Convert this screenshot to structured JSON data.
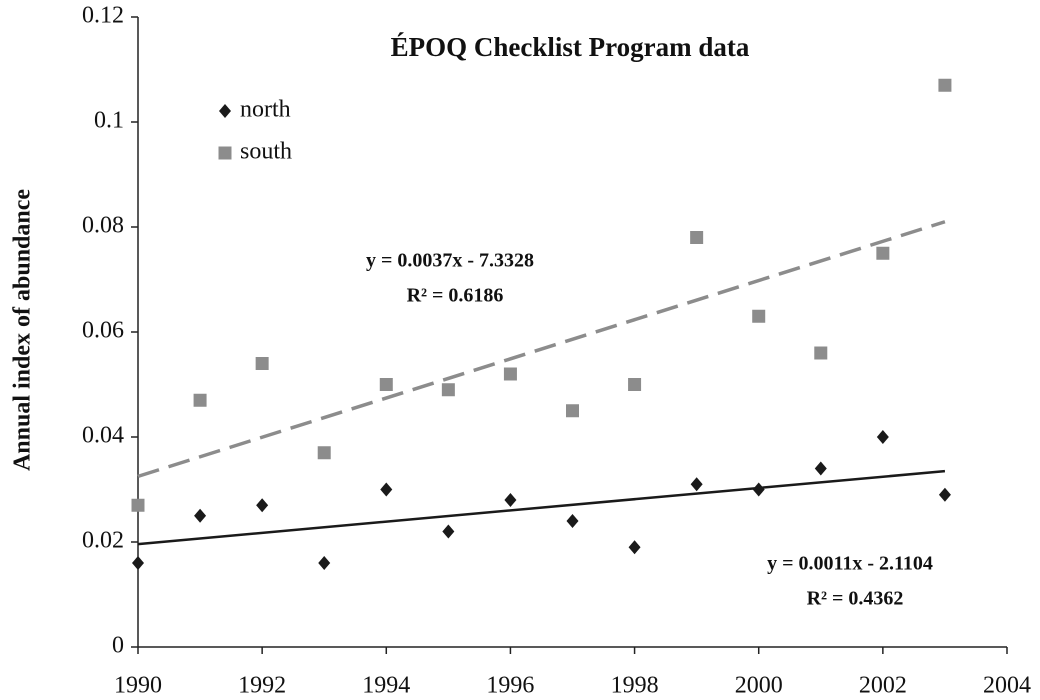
{
  "chart_data": {
    "type": "scatter",
    "title": "ÉPOQ Checklist Program data",
    "y_label": "Annual index of abundance",
    "x": [
      1990,
      1991,
      1992,
      1993,
      1994,
      1995,
      1996,
      1997,
      1998,
      1999,
      2000,
      2001,
      2002,
      2003
    ],
    "series": [
      {
        "name": "north",
        "color": "#1a1a1a",
        "marker": "diamond",
        "values": [
          0.016,
          0.025,
          0.027,
          0.016,
          0.03,
          0.022,
          0.028,
          0.024,
          0.019,
          0.031,
          0.03,
          0.034,
          0.04,
          0.029
        ]
      },
      {
        "name": "south",
        "color": "#8c8c8c",
        "marker": "square",
        "values": [
          0.027,
          0.047,
          0.054,
          0.037,
          0.05,
          0.049,
          0.052,
          0.045,
          0.05,
          0.078,
          0.063,
          0.056,
          0.075,
          0.107
        ]
      }
    ],
    "trendlines": [
      {
        "x": [
          1990,
          2003
        ],
        "values": [
          0.0196,
          0.0335
        ],
        "color": "#1a1a1a",
        "dashed": false
      },
      {
        "x": [
          1990,
          2003
        ],
        "values": [
          0.0325,
          0.081
        ],
        "color": "#8c8c8c",
        "dashed": true
      }
    ],
    "annotations": [
      {
        "lines": [
          "y = 0.0011x - 2.1104",
          "R² = 0.4362"
        ]
      },
      {
        "lines": [
          "y = 0.0037x - 7.3328",
          "R² = 0.6186"
        ]
      }
    ],
    "xlim": [
      1990,
      2004
    ],
    "ylim": [
      0,
      0.12
    ],
    "xticks": [
      1990,
      1992,
      1994,
      1996,
      1998,
      2000,
      2002,
      2004
    ],
    "yticks": [
      0,
      0.02,
      0.04,
      0.06,
      0.08,
      0.1,
      0.12
    ],
    "grid": false,
    "legend": "upper left"
  }
}
